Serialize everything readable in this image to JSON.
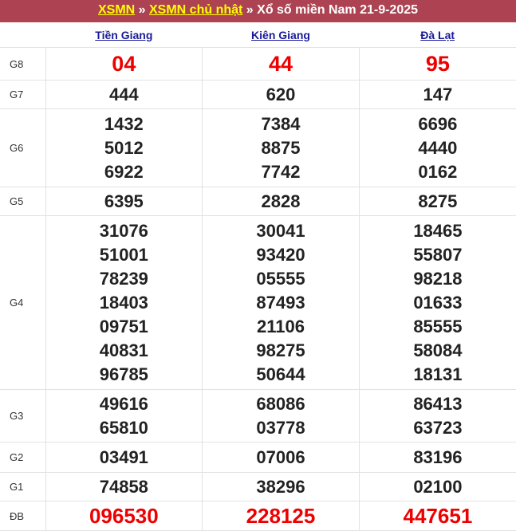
{
  "header": {
    "crumb1": "XSMN",
    "sep1": " » ",
    "crumb2": "XSMN chủ nhật",
    "sep2": " » ",
    "title": "Xổ số miền Nam 21-9-2025"
  },
  "provinces": [
    "Tiền Giang",
    "Kiên Giang",
    "Đà Lạt"
  ],
  "prizes": [
    {
      "label": "G8",
      "style": "big",
      "values": [
        [
          "04"
        ],
        [
          "44"
        ],
        [
          "95"
        ]
      ]
    },
    {
      "label": "G7",
      "style": "",
      "values": [
        [
          "444"
        ],
        [
          "620"
        ],
        [
          "147"
        ]
      ]
    },
    {
      "label": "G6",
      "style": "",
      "values": [
        [
          "1432",
          "5012",
          "6922"
        ],
        [
          "7384",
          "8875",
          "7742"
        ],
        [
          "6696",
          "4440",
          "0162"
        ]
      ]
    },
    {
      "label": "G5",
      "style": "",
      "values": [
        [
          "6395"
        ],
        [
          "2828"
        ],
        [
          "8275"
        ]
      ]
    },
    {
      "label": "G4",
      "style": "",
      "values": [
        [
          "31076",
          "51001",
          "78239",
          "18403",
          "09751",
          "40831",
          "96785"
        ],
        [
          "30041",
          "93420",
          "05555",
          "87493",
          "21106",
          "98275",
          "50644"
        ],
        [
          "18465",
          "55807",
          "98218",
          "01633",
          "85555",
          "58084",
          "18131"
        ]
      ]
    },
    {
      "label": "G3",
      "style": "",
      "values": [
        [
          "49616",
          "65810"
        ],
        [
          "68086",
          "03778"
        ],
        [
          "86413",
          "63723"
        ]
      ]
    },
    {
      "label": "G2",
      "style": "",
      "values": [
        [
          "03491"
        ],
        [
          "07006"
        ],
        [
          "83196"
        ]
      ]
    },
    {
      "label": "G1",
      "style": "",
      "values": [
        [
          "74858"
        ],
        [
          "38296"
        ],
        [
          "02100"
        ]
      ]
    },
    {
      "label": "ĐB",
      "style": "db",
      "values": [
        [
          "096530"
        ],
        [
          "228125"
        ],
        [
          "447651"
        ]
      ]
    }
  ],
  "colors": {
    "header_bg": "#ad4352",
    "link_yellow": "#ffff00",
    "special_red": "#ee0000",
    "province_link": "#1a1a99"
  }
}
